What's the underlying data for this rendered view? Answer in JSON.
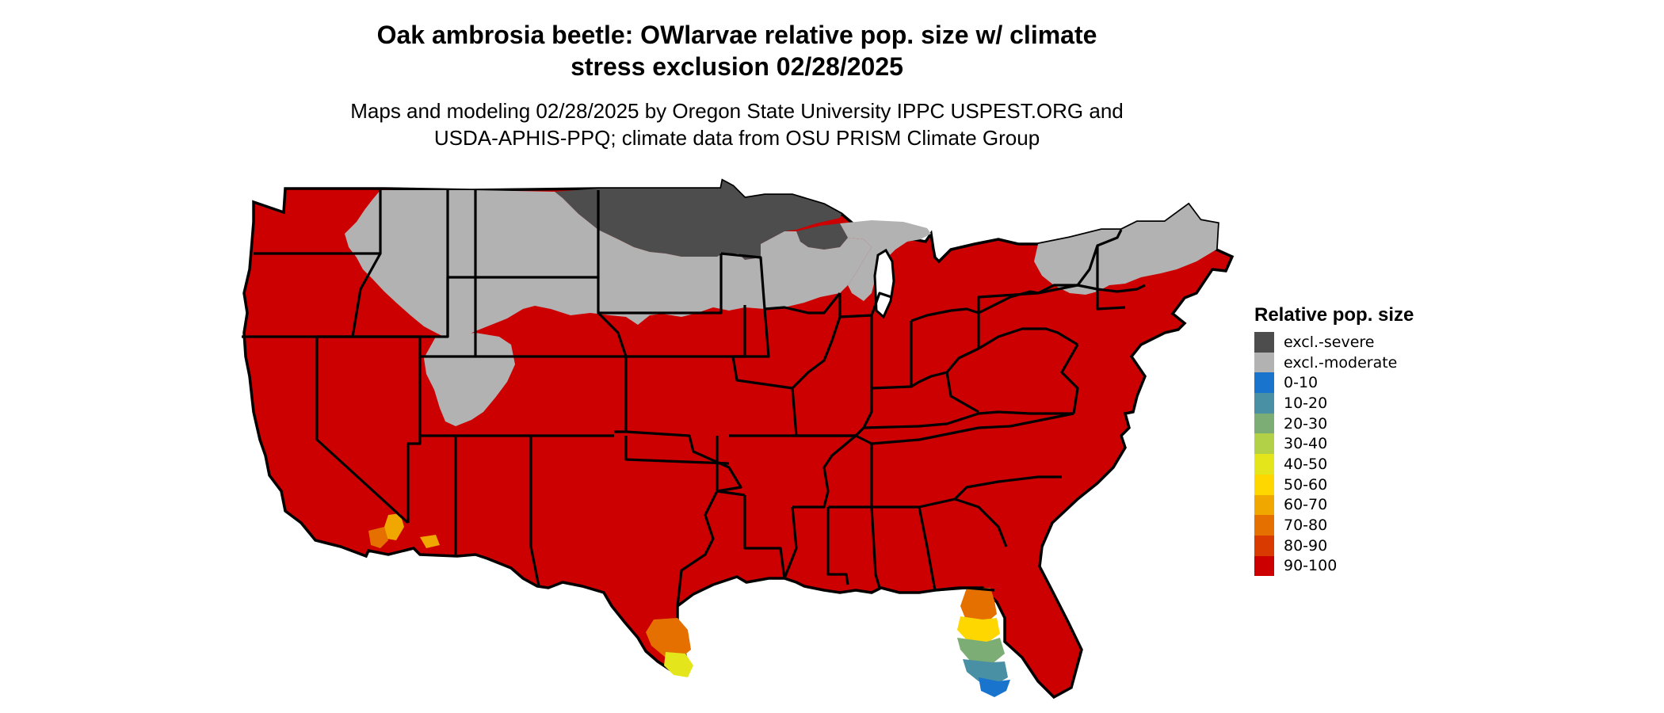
{
  "title": {
    "line1": "Oak ambrosia beetle: OWlarvae relative pop. size w/ climate",
    "line2": "stress exclusion 02/28/2025"
  },
  "subtitle": {
    "line1": "Maps and modeling 02/28/2025 by Oregon State University IPPC USPEST.ORG and",
    "line2": "USDA-APHIS-PPQ; climate data from OSU PRISM Climate Group"
  },
  "legend": {
    "title": "Relative pop. size",
    "items": [
      {
        "label": "excl.-severe",
        "color": "#4d4d4d"
      },
      {
        "label": "excl.-moderate",
        "color": "#b2b2b2"
      },
      {
        "label": "0-10",
        "color": "#1874cd"
      },
      {
        "label": "10-20",
        "color": "#4a90a4"
      },
      {
        "label": "20-30",
        "color": "#7cad74"
      },
      {
        "label": "30-40",
        "color": "#b3d146"
      },
      {
        "label": "40-50",
        "color": "#e5e51c"
      },
      {
        "label": "50-60",
        "color": "#ffd700"
      },
      {
        "label": "60-70",
        "color": "#f0a800"
      },
      {
        "label": "70-80",
        "color": "#e57000"
      },
      {
        "label": "80-90",
        "color": "#d83a00"
      },
      {
        "label": "90-100",
        "color": "#cc0000"
      }
    ]
  }
}
